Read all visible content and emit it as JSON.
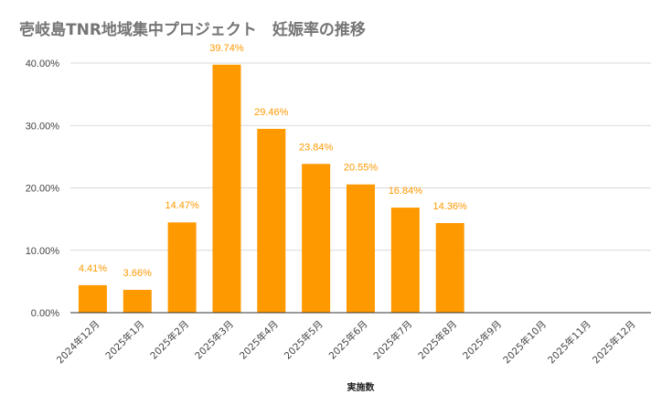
{
  "chart_data": {
    "type": "bar",
    "title": "壱岐島TNR地域集中プロジェクト　妊娠率の推移",
    "xlabel": "実施数",
    "ylabel": "",
    "categories": [
      "2024年12月",
      "2025年1月",
      "2025年2月",
      "2025年3月",
      "2025年4月",
      "2025年5月",
      "2025年6月",
      "2025年7月",
      "2025年8月",
      "2025年9月",
      "2025年10月",
      "2025年11月",
      "2025年12月"
    ],
    "values": [
      4.41,
      3.66,
      14.47,
      39.74,
      29.46,
      23.84,
      20.55,
      16.84,
      14.36,
      null,
      null,
      null,
      null
    ],
    "data_labels": [
      "4.41%",
      "3.66%",
      "14.47%",
      "39.74%",
      "29.46%",
      "23.84%",
      "20.55%",
      "16.84%",
      "14.36%",
      "",
      "",
      "",
      ""
    ],
    "ylim": [
      0,
      40
    ],
    "yticks": [
      0,
      10,
      20,
      30,
      40
    ],
    "ytick_labels": [
      "0.00%",
      "10.00%",
      "20.00%",
      "30.00%",
      "40.00%"
    ],
    "grid": true,
    "legend": "none",
    "colors": {
      "bar": "#ff9900",
      "label": "#ff9900",
      "grid": "#d9d9d9",
      "axis": "#333333"
    }
  }
}
